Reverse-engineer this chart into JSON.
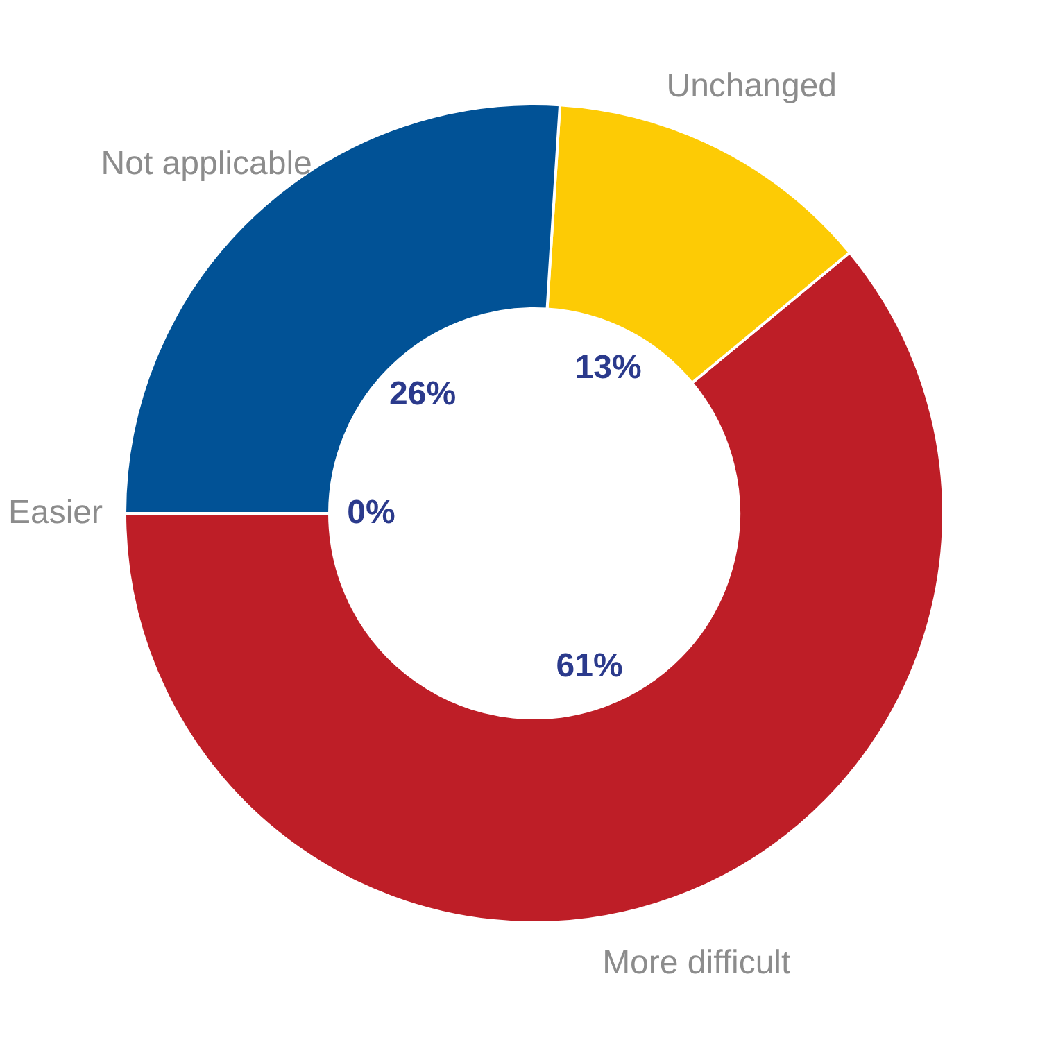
{
  "chart_data": {
    "type": "donut",
    "categories": [
      "Easier",
      "More difficult",
      "Unchanged",
      "Not applicable"
    ],
    "values": [
      0,
      61,
      13,
      26
    ],
    "colors": [
      "#8c8c8c",
      "#be1e27",
      "#fdcb05",
      "#015296"
    ],
    "value_labels": [
      "0%",
      "61%",
      "13%",
      "26%"
    ],
    "legend": false
  }
}
